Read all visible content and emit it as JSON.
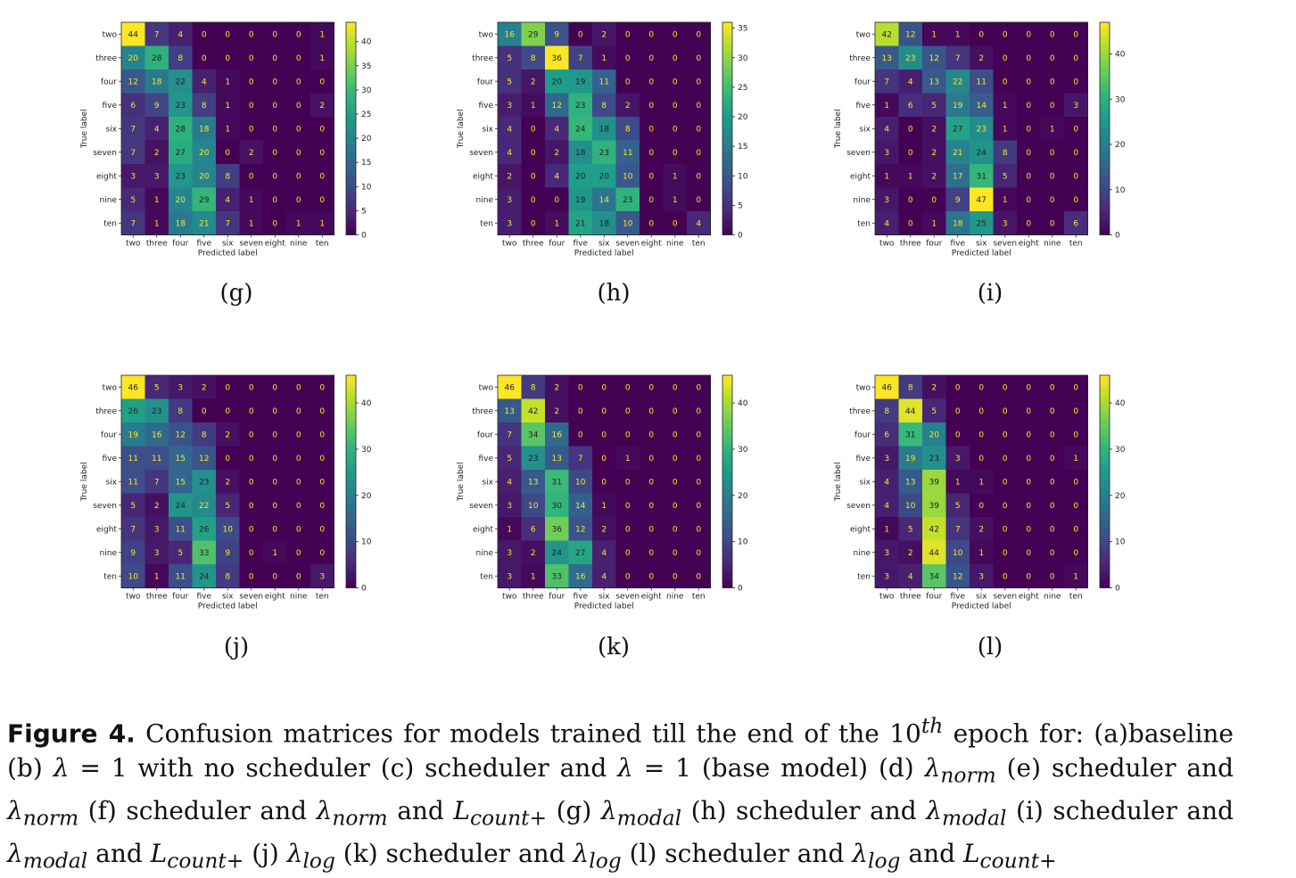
{
  "chart_data": [
    {
      "type": "heatmap",
      "id": "g",
      "xlabel": "Predicted label",
      "ylabel": "True label",
      "categories": [
        "two",
        "three",
        "four",
        "five",
        "six",
        "seven",
        "eight",
        "nine",
        "ten"
      ],
      "colorbar_ticks": [
        0,
        5,
        10,
        15,
        20,
        25,
        30,
        35,
        40
      ],
      "vmin": 0,
      "vmax": 44,
      "matrix": [
        [
          44,
          7,
          4,
          0,
          0,
          0,
          0,
          0,
          1
        ],
        [
          20,
          28,
          8,
          0,
          0,
          0,
          0,
          0,
          1
        ],
        [
          12,
          18,
          22,
          4,
          1,
          0,
          0,
          0,
          0
        ],
        [
          6,
          9,
          23,
          8,
          1,
          0,
          0,
          0,
          2
        ],
        [
          7,
          4,
          28,
          18,
          1,
          0,
          0,
          0,
          0
        ],
        [
          7,
          2,
          27,
          20,
          0,
          2,
          0,
          0,
          0
        ],
        [
          3,
          3,
          23,
          20,
          8,
          0,
          0,
          0,
          0
        ],
        [
          5,
          1,
          20,
          29,
          4,
          1,
          0,
          0,
          0
        ],
        [
          7,
          1,
          18,
          21,
          7,
          1,
          0,
          1,
          1
        ]
      ]
    },
    {
      "type": "heatmap",
      "id": "h",
      "xlabel": "Predicted label",
      "ylabel": "True label",
      "categories": [
        "two",
        "three",
        "four",
        "five",
        "six",
        "seven",
        "eight",
        "nine",
        "ten"
      ],
      "colorbar_ticks": [
        0,
        5,
        10,
        15,
        20,
        25,
        30,
        35
      ],
      "vmin": 0,
      "vmax": 36,
      "matrix": [
        [
          16,
          29,
          9,
          0,
          2,
          0,
          0,
          0,
          0
        ],
        [
          5,
          8,
          36,
          7,
          1,
          0,
          0,
          0,
          0
        ],
        [
          5,
          2,
          20,
          19,
          11,
          0,
          0,
          0,
          0
        ],
        [
          3,
          1,
          12,
          23,
          8,
          2,
          0,
          0,
          0
        ],
        [
          4,
          0,
          4,
          24,
          18,
          8,
          0,
          0,
          0
        ],
        [
          4,
          0,
          2,
          18,
          23,
          11,
          0,
          0,
          0
        ],
        [
          2,
          0,
          4,
          20,
          20,
          10,
          0,
          1,
          0
        ],
        [
          3,
          0,
          0,
          19,
          14,
          23,
          0,
          1,
          0
        ],
        [
          3,
          0,
          1,
          21,
          18,
          10,
          0,
          0,
          4
        ]
      ]
    },
    {
      "type": "heatmap",
      "id": "i",
      "xlabel": "Predicted label",
      "ylabel": "True label",
      "categories": [
        "two",
        "three",
        "four",
        "five",
        "six",
        "seven",
        "eight",
        "nine",
        "ten"
      ],
      "colorbar_ticks": [
        0,
        10,
        20,
        30,
        40
      ],
      "vmin": 0,
      "vmax": 47,
      "matrix": [
        [
          42,
          12,
          1,
          1,
          0,
          0,
          0,
          0,
          0
        ],
        [
          13,
          23,
          12,
          7,
          2,
          0,
          0,
          0,
          0
        ],
        [
          7,
          4,
          13,
          22,
          11,
          0,
          0,
          0,
          0
        ],
        [
          1,
          6,
          5,
          19,
          14,
          1,
          0,
          0,
          3
        ],
        [
          4,
          0,
          2,
          27,
          23,
          1,
          0,
          1,
          0
        ],
        [
          3,
          0,
          2,
          21,
          24,
          8,
          0,
          0,
          0
        ],
        [
          1,
          1,
          2,
          17,
          31,
          5,
          0,
          0,
          0
        ],
        [
          3,
          0,
          0,
          9,
          47,
          1,
          0,
          0,
          0
        ],
        [
          4,
          0,
          1,
          18,
          25,
          3,
          0,
          0,
          6
        ]
      ]
    },
    {
      "type": "heatmap",
      "id": "j",
      "xlabel": "Predicted label",
      "ylabel": "True label",
      "categories": [
        "two",
        "three",
        "four",
        "five",
        "six",
        "seven",
        "eight",
        "nine",
        "ten"
      ],
      "colorbar_ticks": [
        0,
        10,
        20,
        30,
        40
      ],
      "vmin": 0,
      "vmax": 46,
      "matrix": [
        [
          46,
          5,
          3,
          2,
          0,
          0,
          0,
          0,
          0
        ],
        [
          26,
          23,
          8,
          0,
          0,
          0,
          0,
          0,
          0
        ],
        [
          19,
          16,
          12,
          8,
          2,
          0,
          0,
          0,
          0
        ],
        [
          11,
          11,
          15,
          12,
          0,
          0,
          0,
          0,
          0
        ],
        [
          11,
          7,
          15,
          23,
          2,
          0,
          0,
          0,
          0
        ],
        [
          5,
          2,
          24,
          22,
          5,
          0,
          0,
          0,
          0
        ],
        [
          7,
          3,
          11,
          26,
          10,
          0,
          0,
          0,
          0
        ],
        [
          9,
          3,
          5,
          33,
          9,
          0,
          1,
          0,
          0
        ],
        [
          10,
          1,
          11,
          24,
          8,
          0,
          0,
          0,
          3
        ]
      ]
    },
    {
      "type": "heatmap",
      "id": "k",
      "xlabel": "Predicted label",
      "ylabel": "True label",
      "categories": [
        "two",
        "three",
        "four",
        "five",
        "six",
        "seven",
        "eight",
        "nine",
        "ten"
      ],
      "colorbar_ticks": [
        0,
        10,
        20,
        30,
        40
      ],
      "vmin": 0,
      "vmax": 46,
      "matrix": [
        [
          46,
          8,
          2,
          0,
          0,
          0,
          0,
          0,
          0
        ],
        [
          13,
          42,
          2,
          0,
          0,
          0,
          0,
          0,
          0
        ],
        [
          7,
          34,
          16,
          0,
          0,
          0,
          0,
          0,
          0
        ],
        [
          5,
          23,
          13,
          7,
          0,
          1,
          0,
          0,
          0
        ],
        [
          4,
          13,
          31,
          10,
          0,
          0,
          0,
          0,
          0
        ],
        [
          3,
          10,
          30,
          14,
          1,
          0,
          0,
          0,
          0
        ],
        [
          1,
          6,
          36,
          12,
          2,
          0,
          0,
          0,
          0
        ],
        [
          3,
          2,
          24,
          27,
          4,
          0,
          0,
          0,
          0
        ],
        [
          3,
          1,
          33,
          16,
          4,
          0,
          0,
          0,
          0
        ]
      ]
    },
    {
      "type": "heatmap",
      "id": "l",
      "xlabel": "Predicted label",
      "ylabel": "True label",
      "categories": [
        "two",
        "three",
        "four",
        "five",
        "six",
        "seven",
        "eight",
        "nine",
        "ten"
      ],
      "colorbar_ticks": [
        0,
        10,
        20,
        30,
        40
      ],
      "vmin": 0,
      "vmax": 46,
      "matrix": [
        [
          46,
          8,
          2,
          0,
          0,
          0,
          0,
          0,
          0
        ],
        [
          8,
          44,
          5,
          0,
          0,
          0,
          0,
          0,
          0
        ],
        [
          6,
          31,
          20,
          0,
          0,
          0,
          0,
          0,
          0
        ],
        [
          3,
          19,
          23,
          3,
          0,
          0,
          0,
          0,
          1
        ],
        [
          4,
          13,
          39,
          1,
          1,
          0,
          0,
          0,
          0
        ],
        [
          4,
          10,
          39,
          5,
          0,
          0,
          0,
          0,
          0
        ],
        [
          1,
          5,
          42,
          7,
          2,
          0,
          0,
          0,
          0
        ],
        [
          3,
          2,
          44,
          10,
          1,
          0,
          0,
          0,
          0
        ],
        [
          3,
          4,
          34,
          12,
          3,
          0,
          0,
          0,
          1
        ]
      ]
    }
  ],
  "subcaptions": {
    "g": "(g)",
    "h": "(h)",
    "i": "(i)",
    "j": "(j)",
    "k": "(k)",
    "l": "(l)"
  },
  "caption": {
    "label": "Figure 4.",
    "t1": " Confusion matrices for models trained till the end of the 10",
    "t1_sup": "th",
    "t2": " epoch for: (a)baseline (b) ",
    "t3": " = 1 with no scheduler (c) scheduler and ",
    "t4": " = 1 (base model) (d) ",
    "t5": " (e) scheduler and ",
    "t6": " (f) scheduler and ",
    "t7": " and ",
    "t8": " (g) ",
    "t9": " (h) scheduler and ",
    "t10": " (i) scheduler and ",
    "t11": " and ",
    "t12": " (j) ",
    "t13": " (k) scheduler and ",
    "t14": " (l) scheduler and ",
    "t15": " and ",
    "lambda": "λ",
    "L": "L",
    "sub_norm": "norm",
    "sub_modal": "modal",
    "sub_log": "log",
    "sub_count": "count+"
  }
}
